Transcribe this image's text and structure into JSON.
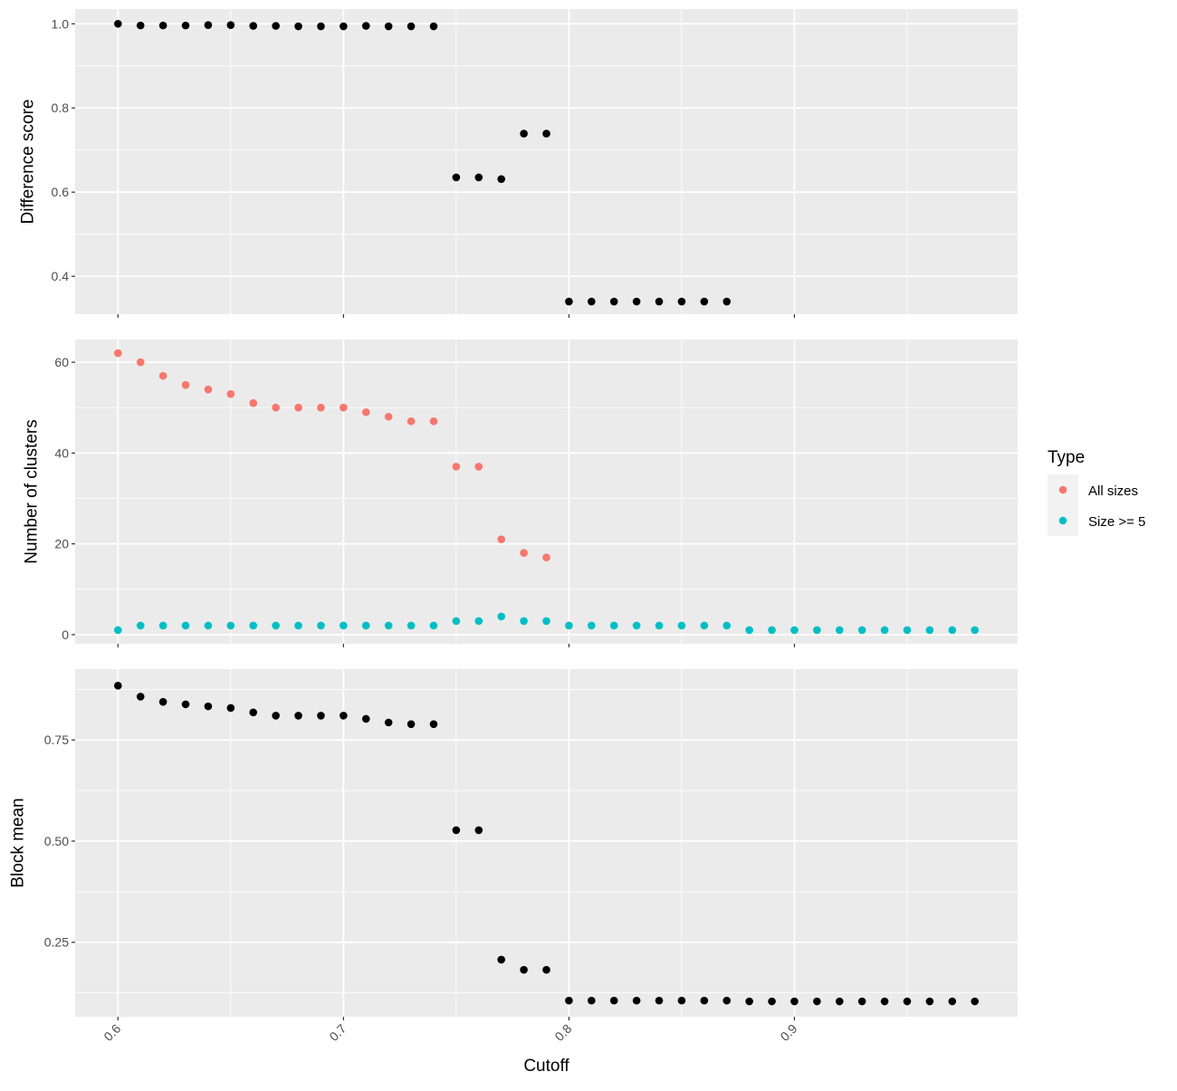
{
  "chart_data": [
    {
      "panel": "difference-score",
      "type": "scatter",
      "ylabel": "Difference score",
      "xlim": [
        0.581,
        0.999
      ],
      "ylim": [
        0.31,
        1.035
      ],
      "yticks": [
        0.4,
        0.6,
        0.8,
        1.0
      ],
      "ytick_labels": [
        "0.4",
        "0.6",
        "0.8",
        "1.0"
      ],
      "grid": true,
      "series": [
        {
          "color": "#000000",
          "x": [
            0.6,
            0.61,
            0.62,
            0.63,
            0.64,
            0.65,
            0.66,
            0.67,
            0.68,
            0.69,
            0.7,
            0.71,
            0.72,
            0.73,
            0.74,
            0.75,
            0.76,
            0.77,
            0.78,
            0.79,
            0.8,
            0.81,
            0.82,
            0.83,
            0.84,
            0.85,
            0.86,
            0.87
          ],
          "y": [
            1.0,
            0.996,
            0.996,
            0.996,
            0.997,
            0.997,
            0.995,
            0.995,
            0.994,
            0.994,
            0.994,
            0.995,
            0.994,
            0.994,
            0.994,
            0.635,
            0.635,
            0.631,
            0.739,
            0.739,
            0.34,
            0.34,
            0.34,
            0.34,
            0.34,
            0.34,
            0.34,
            0.34
          ]
        }
      ]
    },
    {
      "panel": "number-of-clusters",
      "type": "scatter",
      "ylabel": "Number of clusters",
      "xlim": [
        0.581,
        0.999
      ],
      "ylim": [
        -2,
        65
      ],
      "yticks": [
        0,
        20,
        40,
        60
      ],
      "ytick_labels": [
        "0",
        "20",
        "40",
        "60"
      ],
      "grid": true,
      "legend": {
        "title": "Type",
        "position": "right"
      },
      "series": [
        {
          "name": "All sizes",
          "color": "#F8766D",
          "x": [
            0.6,
            0.61,
            0.62,
            0.63,
            0.64,
            0.65,
            0.66,
            0.67,
            0.68,
            0.69,
            0.7,
            0.71,
            0.72,
            0.73,
            0.74,
            0.75,
            0.76,
            0.77,
            0.78,
            0.79
          ],
          "y": [
            62,
            60,
            57,
            55,
            54,
            53,
            51,
            50,
            50,
            50,
            50,
            49,
            48,
            47,
            47,
            37,
            37,
            21,
            18,
            17
          ]
        },
        {
          "name": "Size >= 5",
          "color": "#00BFC4",
          "x": [
            0.6,
            0.61,
            0.62,
            0.63,
            0.64,
            0.65,
            0.66,
            0.67,
            0.68,
            0.69,
            0.7,
            0.71,
            0.72,
            0.73,
            0.74,
            0.75,
            0.76,
            0.77,
            0.78,
            0.79,
            0.8,
            0.81,
            0.82,
            0.83,
            0.84,
            0.85,
            0.86,
            0.87,
            0.88,
            0.89,
            0.9,
            0.91,
            0.92,
            0.93,
            0.94,
            0.95,
            0.96,
            0.97,
            0.98
          ],
          "y": [
            1,
            2,
            2,
            2,
            2,
            2,
            2,
            2,
            2,
            2,
            2,
            2,
            2,
            2,
            2,
            3,
            3,
            4,
            3,
            3,
            2,
            2,
            2,
            2,
            2,
            2,
            2,
            2,
            1,
            1,
            1,
            1,
            1,
            1,
            1,
            1,
            1,
            1,
            1
          ]
        }
      ]
    },
    {
      "panel": "block-mean",
      "type": "scatter",
      "ylabel": "Block mean",
      "xlabel": "Cutoff",
      "xlim": [
        0.581,
        0.999
      ],
      "ylim": [
        0.066,
        0.925
      ],
      "yticks": [
        0.25,
        0.5,
        0.75
      ],
      "ytick_labels": [
        "0.25",
        "0.50",
        "0.75"
      ],
      "xticks": [
        0.6,
        0.7,
        0.8,
        0.9
      ],
      "xtick_labels": [
        "0.6",
        "0.7",
        "0.8",
        "0.9"
      ],
      "grid": true,
      "series": [
        {
          "color": "#000000",
          "x": [
            0.6,
            0.61,
            0.62,
            0.63,
            0.64,
            0.65,
            0.66,
            0.67,
            0.68,
            0.69,
            0.7,
            0.71,
            0.72,
            0.73,
            0.74,
            0.75,
            0.76,
            0.77,
            0.78,
            0.79,
            0.8,
            0.81,
            0.82,
            0.83,
            0.84,
            0.85,
            0.86,
            0.87,
            0.88,
            0.89,
            0.9,
            0.91,
            0.92,
            0.93,
            0.94,
            0.95,
            0.96,
            0.97,
            0.98
          ],
          "y": [
            0.884,
            0.857,
            0.844,
            0.838,
            0.833,
            0.829,
            0.818,
            0.81,
            0.81,
            0.81,
            0.81,
            0.802,
            0.793,
            0.789,
            0.789,
            0.527,
            0.527,
            0.207,
            0.182,
            0.182,
            0.106,
            0.106,
            0.106,
            0.106,
            0.106,
            0.106,
            0.106,
            0.106,
            0.104,
            0.104,
            0.104,
            0.104,
            0.104,
            0.104,
            0.104,
            0.104,
            0.104,
            0.104,
            0.104
          ]
        }
      ]
    }
  ]
}
